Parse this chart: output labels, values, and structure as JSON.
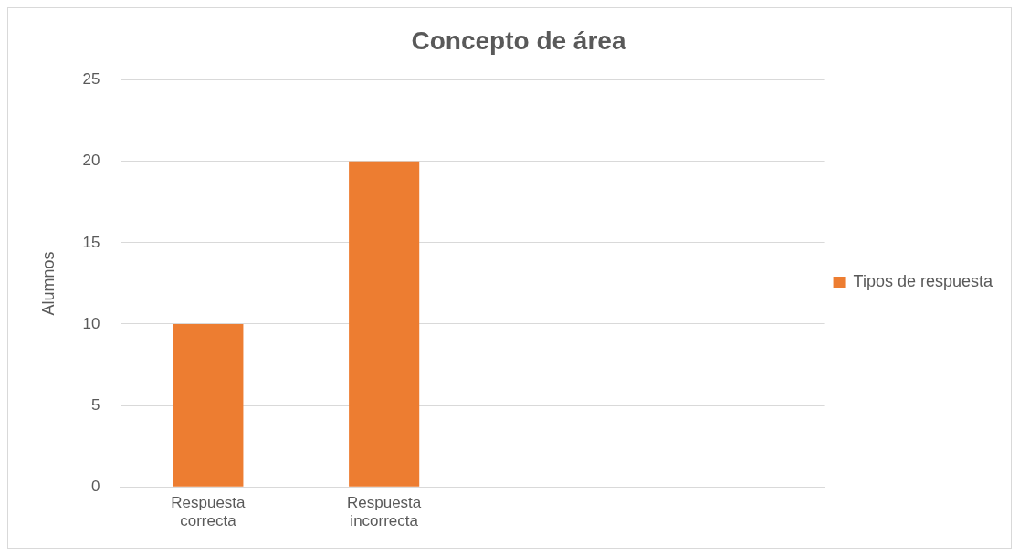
{
  "chart_data": {
    "type": "bar",
    "title": "Concepto de área",
    "ylabel": "Alumnos",
    "categories": [
      "Respuesta correcta",
      "Respuesta incorrecta",
      null,
      null
    ],
    "series": [
      {
        "name": "Tipos de respuesta",
        "color": "#ed7d31",
        "values": [
          10,
          20,
          null,
          null
        ]
      }
    ],
    "ylim": [
      0,
      25
    ],
    "yticks": [
      0,
      5,
      10,
      15,
      20,
      25
    ],
    "grid": "y",
    "legend": "right"
  }
}
